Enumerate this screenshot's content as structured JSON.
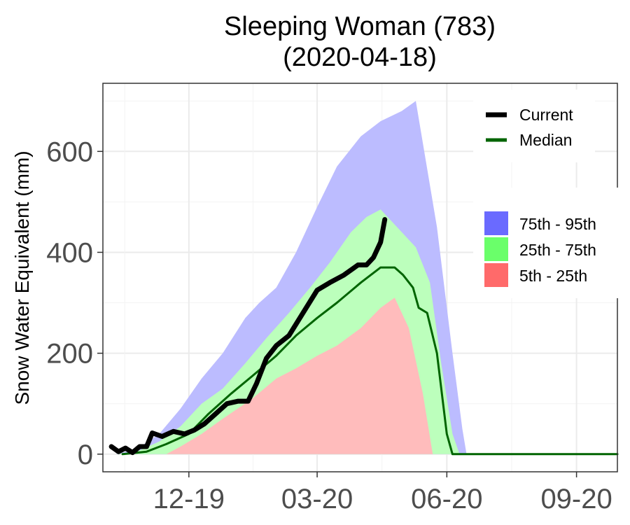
{
  "chart_data": {
    "type": "area",
    "title": "Sleeping Woman (783)",
    "subtitle": "(2020-04-18)",
    "xlabel": "",
    "ylabel": "Snow Water Equivalent (mm)",
    "x_range": [
      "2019-10-01",
      "2020-09-30"
    ],
    "ylim": [
      -35,
      735
    ],
    "y_ticks": [
      0,
      200,
      400,
      600
    ],
    "x_ticks": [
      {
        "date": "2019-12-01",
        "label": "12-19"
      },
      {
        "date": "2020-03-01",
        "label": "03-20"
      },
      {
        "date": "2020-06-01",
        "label": "06-20"
      },
      {
        "date": "2020-09-01",
        "label": "09-20"
      }
    ],
    "grid": true,
    "legend": {
      "placement": "right",
      "lines": [
        {
          "name": "Current",
          "color": "#000000"
        },
        {
          "name": "Median",
          "color": "#006400"
        }
      ],
      "bands": [
        {
          "name": "75th - 95th",
          "color": "#6a6aff"
        },
        {
          "name": "25th - 75th",
          "color": "#6aff6a"
        },
        {
          "name": "5th - 25th",
          "color": "#ff6a6a"
        }
      ]
    },
    "bands": {
      "p95": {
        "color": "#bcbcff",
        "points": [
          [
            "2019-10-10",
            0
          ],
          [
            "2019-10-25",
            10
          ],
          [
            "2019-11-10",
            40
          ],
          [
            "2019-11-25",
            90
          ],
          [
            "2019-12-10",
            150
          ],
          [
            "2019-12-25",
            200
          ],
          [
            "2020-01-10",
            270
          ],
          [
            "2020-01-20",
            300
          ],
          [
            "2020-02-01",
            330
          ],
          [
            "2020-02-15",
            400
          ],
          [
            "2020-03-01",
            490
          ],
          [
            "2020-03-15",
            570
          ],
          [
            "2020-04-01",
            630
          ],
          [
            "2020-04-15",
            660
          ],
          [
            "2020-04-30",
            680
          ],
          [
            "2020-05-10",
            700
          ],
          [
            "2020-05-25",
            450
          ],
          [
            "2020-06-05",
            200
          ],
          [
            "2020-06-12",
            50
          ],
          [
            "2020-06-15",
            0
          ]
        ]
      },
      "p75": {
        "color": "#bcffbc",
        "points": [
          [
            "2019-10-10",
            0
          ],
          [
            "2019-10-25",
            5
          ],
          [
            "2019-11-10",
            25
          ],
          [
            "2019-11-25",
            55
          ],
          [
            "2019-12-10",
            100
          ],
          [
            "2019-12-25",
            130
          ],
          [
            "2020-01-10",
            180
          ],
          [
            "2020-01-25",
            230
          ],
          [
            "2020-02-10",
            280
          ],
          [
            "2020-02-25",
            330
          ],
          [
            "2020-03-10",
            380
          ],
          [
            "2020-03-25",
            440
          ],
          [
            "2020-04-05",
            470
          ],
          [
            "2020-04-15",
            485
          ],
          [
            "2020-04-30",
            440
          ],
          [
            "2020-05-10",
            410
          ],
          [
            "2020-05-20",
            340
          ],
          [
            "2020-05-28",
            180
          ],
          [
            "2020-06-05",
            40
          ],
          [
            "2020-06-10",
            0
          ]
        ]
      },
      "p25": {
        "color": "#ffbcbc",
        "points": [
          [
            "2019-11-15",
            0
          ],
          [
            "2019-11-25",
            15
          ],
          [
            "2019-12-10",
            40
          ],
          [
            "2019-12-25",
            70
          ],
          [
            "2020-01-15",
            110
          ],
          [
            "2020-02-01",
            150
          ],
          [
            "2020-02-15",
            170
          ],
          [
            "2020-03-01",
            195
          ],
          [
            "2020-03-15",
            215
          ],
          [
            "2020-04-01",
            250
          ],
          [
            "2020-04-15",
            290
          ],
          [
            "2020-04-25",
            310
          ],
          [
            "2020-05-05",
            250
          ],
          [
            "2020-05-15",
            120
          ],
          [
            "2020-05-22",
            0
          ]
        ]
      },
      "p5": {
        "color": "#ffffff",
        "points": [
          [
            "2019-11-15",
            0
          ],
          [
            "2020-05-22",
            0
          ]
        ]
      }
    },
    "series": [
      {
        "name": "Median",
        "color": "#006400",
        "points": [
          [
            "2019-10-15",
            0
          ],
          [
            "2019-11-01",
            5
          ],
          [
            "2019-11-15",
            20
          ],
          [
            "2019-12-01",
            40
          ],
          [
            "2019-12-15",
            80
          ],
          [
            "2019-12-31",
            120
          ],
          [
            "2020-01-15",
            155
          ],
          [
            "2020-02-01",
            195
          ],
          [
            "2020-02-15",
            235
          ],
          [
            "2020-03-01",
            270
          ],
          [
            "2020-03-15",
            300
          ],
          [
            "2020-04-01",
            340
          ],
          [
            "2020-04-15",
            370
          ],
          [
            "2020-04-25",
            370
          ],
          [
            "2020-05-01",
            355
          ],
          [
            "2020-05-08",
            330
          ],
          [
            "2020-05-12",
            290
          ],
          [
            "2020-05-18",
            280
          ],
          [
            "2020-05-25",
            200
          ],
          [
            "2020-06-01",
            40
          ],
          [
            "2020-06-05",
            0
          ],
          [
            "2020-09-30",
            0
          ]
        ]
      },
      {
        "name": "Current",
        "color": "#000000",
        "points": [
          [
            "2019-10-07",
            15
          ],
          [
            "2019-10-12",
            5
          ],
          [
            "2019-10-17",
            12
          ],
          [
            "2019-10-22",
            3
          ],
          [
            "2019-10-27",
            15
          ],
          [
            "2019-11-01",
            15
          ],
          [
            "2019-11-05",
            42
          ],
          [
            "2019-11-12",
            35
          ],
          [
            "2019-11-20",
            45
          ],
          [
            "2019-11-28",
            40
          ],
          [
            "2019-12-05",
            48
          ],
          [
            "2019-12-12",
            60
          ],
          [
            "2019-12-20",
            80
          ],
          [
            "2019-12-28",
            100
          ],
          [
            "2020-01-05",
            105
          ],
          [
            "2020-01-12",
            105
          ],
          [
            "2020-01-18",
            140
          ],
          [
            "2020-01-25",
            190
          ],
          [
            "2020-02-01",
            215
          ],
          [
            "2020-02-10",
            235
          ],
          [
            "2020-02-20",
            280
          ],
          [
            "2020-03-01",
            325
          ],
          [
            "2020-03-10",
            340
          ],
          [
            "2020-03-20",
            355
          ],
          [
            "2020-03-30",
            375
          ],
          [
            "2020-04-05",
            375
          ],
          [
            "2020-04-10",
            390
          ],
          [
            "2020-04-15",
            420
          ],
          [
            "2020-04-18",
            465
          ]
        ]
      }
    ]
  }
}
